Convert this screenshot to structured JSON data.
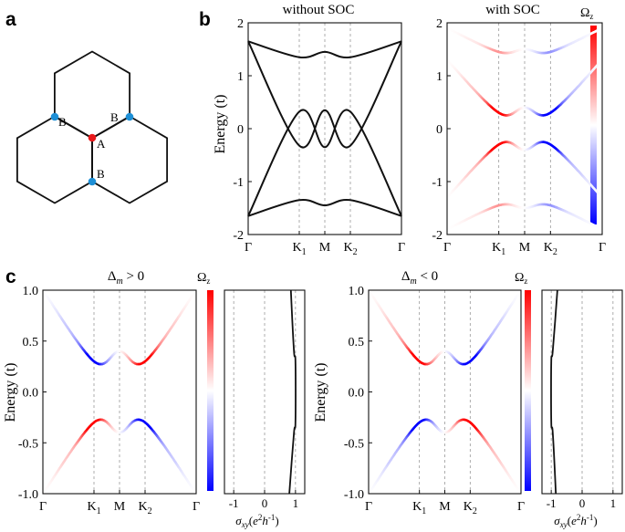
{
  "panel_labels": {
    "a": "a",
    "b": "b",
    "c": "c"
  },
  "lattice": {
    "site_a": "A",
    "site_b": "B",
    "colors": {
      "A": "#e8191b",
      "B": "#1d8fd6"
    }
  },
  "band_titles": {
    "without_soc": "without SOC",
    "with_soc": "with SOC"
  },
  "c_titles": {
    "positive_base": "Δ",
    "positive_sub": "m",
    "positive_rel": "> 0",
    "negative_base": "Δ",
    "negative_sub": "m",
    "negative_rel": "< 0"
  },
  "energy_label": "Energy (t)",
  "colorbar": {
    "base": "Ω",
    "sub": "z",
    "colors": {
      "positive": "#ff0000",
      "zero": "#ffffff",
      "negative": "#0000ff"
    }
  },
  "kpath": [
    "Γ",
    "K",
    "M",
    "K",
    "Γ"
  ],
  "k_subscripts": [
    "",
    "1",
    "",
    "2",
    ""
  ],
  "sigma_label": {
    "base": "σ",
    "sub": "xy",
    "paren_open": "(",
    "e": "e",
    "e_pow": "2",
    "h": "h",
    "h_pow": "-1",
    "paren_close": ")"
  },
  "sigma_ticks": [
    "-1",
    "0",
    "1"
  ],
  "chart_data": [
    {
      "panel": "b-left",
      "type": "line",
      "title": "without SOC",
      "ylabel": "Energy (t)",
      "ylim": [
        -2,
        2
      ],
      "yticks": [
        "-2",
        "-1",
        "0",
        "1",
        "2"
      ],
      "x": [
        "Γ",
        "K1",
        "M",
        "K2",
        "Γ"
      ],
      "x_positions": [
        0,
        1,
        1.5,
        2,
        3
      ],
      "series": [
        {
          "values": [
            1.65,
            1.35,
            1.45,
            1.35,
            1.65
          ]
        },
        {
          "values": [
            1.65,
            -0.32,
            0.35,
            -0.32,
            1.65
          ]
        },
        {
          "values": [
            -1.65,
            0.32,
            -0.35,
            0.32,
            -1.65
          ]
        },
        {
          "values": [
            -1.65,
            -1.35,
            -1.45,
            -1.35,
            -1.65
          ]
        }
      ]
    },
    {
      "panel": "b-right",
      "type": "line",
      "title": "with SOC",
      "ylabel": "Energy (t)",
      "ylim": [
        -2,
        2
      ],
      "yticks": [
        "-2",
        "-1",
        "0",
        "1",
        "2"
      ],
      "x": [
        "Γ",
        "K1",
        "M",
        "K2",
        "Γ"
      ],
      "x_positions": [
        0,
        1,
        1.5,
        2,
        3
      ],
      "series": [
        {
          "values": [
            1.9,
            1.45,
            1.5,
            1.45,
            1.9
          ]
        },
        {
          "values": [
            1.3,
            0.3,
            0.4,
            0.3,
            1.3
          ]
        },
        {
          "values": [
            -1.3,
            -0.3,
            -0.4,
            -0.3,
            -1.3
          ]
        },
        {
          "values": [
            -1.9,
            -1.45,
            -1.5,
            -1.45,
            -1.9
          ]
        }
      ]
    },
    {
      "panel": "c-left",
      "type": "line",
      "title": "Δm > 0",
      "ylabel": "Energy (t)",
      "ylim": [
        -1.0,
        1.0
      ],
      "yticks": [
        "-1.0",
        "-0.5",
        "0.0",
        "0.5",
        "1.0"
      ],
      "x": [
        "Γ",
        "K1",
        "M",
        "K2",
        "Γ"
      ],
      "x_positions": [
        0,
        1,
        1.5,
        2,
        3
      ],
      "series": [
        {
          "values": [
            1.0,
            0.3,
            0.4,
            0.3,
            1.0
          ]
        },
        {
          "values": [
            -1.0,
            -0.3,
            -0.4,
            -0.3,
            -1.0
          ]
        }
      ]
    },
    {
      "panel": "c-left-sigma",
      "type": "line",
      "ylim": [
        -1.0,
        1.0
      ],
      "xlim": [
        -1.3,
        1.3
      ],
      "xticks": [
        "-1",
        "0",
        "1"
      ],
      "series": [
        {
          "energy": [
            1.0,
            0.4,
            0.3,
            -0.3,
            -0.4,
            -1.0
          ],
          "sigma": [
            0.85,
            0.95,
            1.0,
            1.0,
            0.95,
            0.8
          ]
        }
      ]
    },
    {
      "panel": "c-right",
      "type": "line",
      "title": "Δm < 0",
      "ylabel": "Energy (t)",
      "ylim": [
        -1.0,
        1.0
      ],
      "yticks": [
        "-1.0",
        "-0.5",
        "0.0",
        "0.5",
        "1.0"
      ],
      "x": [
        "Γ",
        "K1",
        "M",
        "K2",
        "Γ"
      ],
      "x_positions": [
        0,
        1,
        1.5,
        2,
        3
      ],
      "series": [
        {
          "values": [
            1.0,
            0.3,
            0.4,
            0.3,
            1.0
          ]
        },
        {
          "values": [
            -1.0,
            -0.3,
            -0.4,
            -0.3,
            -1.0
          ]
        }
      ]
    },
    {
      "panel": "c-right-sigma",
      "type": "line",
      "ylim": [
        -1.0,
        1.0
      ],
      "xlim": [
        -1.3,
        1.3
      ],
      "xticks": [
        "-1",
        "0",
        "1"
      ],
      "series": [
        {
          "energy": [
            1.0,
            0.4,
            0.3,
            -0.3,
            -0.4,
            -1.0
          ],
          "sigma": [
            -0.8,
            -0.95,
            -1.0,
            -1.0,
            -0.95,
            -0.85
          ]
        }
      ]
    }
  ]
}
